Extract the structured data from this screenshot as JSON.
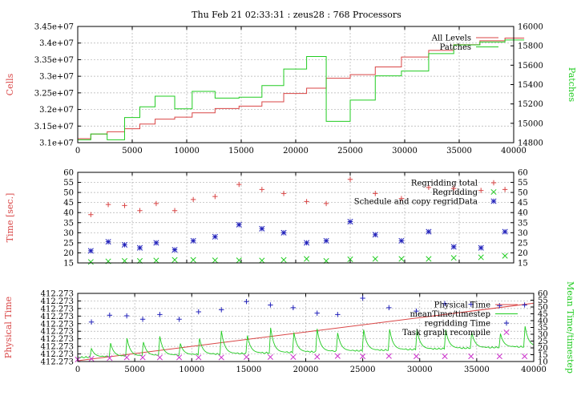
{
  "figure_title": "Thu Feb 21 02:33:31 : zeus28 : 768 Processors",
  "colors": {
    "red": "#d94646",
    "green": "#22cc22",
    "blue": "#2222bb",
    "magenta": "#cc33cc",
    "grid": "#b0b0b0"
  },
  "chart_data": [
    {
      "type": "line",
      "ylabel": "Cells",
      "y2label": "Patches",
      "xlim": [
        0,
        40000
      ],
      "ylim": [
        31000000,
        34500000
      ],
      "y2lim": [
        14800,
        16000
      ],
      "xticks": [
        0,
        5000,
        10000,
        15000,
        20000,
        25000,
        30000,
        35000,
        40000
      ],
      "xtick_labels": [
        "0",
        "5000",
        "10000",
        "15000",
        "20000",
        "25000",
        "30000",
        "35000",
        "40000"
      ],
      "yticks": [
        31000000,
        31500000,
        32000000,
        32500000,
        33000000,
        33500000,
        34000000,
        34500000
      ],
      "ytick_labels": [
        "3.1e+07",
        "3.15e+07",
        "3.2e+07",
        "3.25e+07",
        "3.3e+07",
        "3.35e+07",
        "3.4e+07",
        "3.45e+07"
      ],
      "y2ticks": [
        14800,
        15000,
        15200,
        15400,
        15600,
        15800,
        16000
      ],
      "y2tick_labels": [
        "14800",
        "15000",
        "15200",
        "15400",
        "15600",
        "15800",
        "16000"
      ],
      "grid": true,
      "legend": "top-right",
      "series": [
        {
          "name": "All Levels",
          "color": "#d94646",
          "axis": "left",
          "step": true,
          "x": [
            0,
            1200,
            2700,
            4300,
            5700,
            7100,
            8900,
            10500,
            12600,
            14800,
            16900,
            18900,
            21000,
            22800,
            25000,
            27300,
            29700,
            32200,
            34500,
            36900,
            39200
          ],
          "y": [
            31120000,
            31260000,
            31330000,
            31420000,
            31560000,
            31710000,
            31770000,
            31900000,
            32030000,
            32100000,
            32230000,
            32480000,
            32640000,
            32940000,
            33050000,
            33280000,
            33580000,
            33780000,
            33950000,
            34070000,
            34150000
          ]
        },
        {
          "name": "Patches",
          "color": "#22cc22",
          "axis": "right",
          "step": true,
          "x": [
            0,
            1200,
            2700,
            4300,
            5700,
            7100,
            8900,
            10500,
            12600,
            14800,
            16900,
            18900,
            21000,
            22800,
            25000,
            27300,
            29700,
            32200,
            34500,
            36900,
            39200
          ],
          "y": [
            14830,
            14890,
            14830,
            15060,
            15170,
            15280,
            15150,
            15330,
            15260,
            15270,
            15390,
            15560,
            15690,
            15020,
            15240,
            15490,
            15540,
            15720,
            15810,
            15840,
            15860
          ]
        }
      ]
    },
    {
      "type": "scatter",
      "ylabel": "Time [sec.]",
      "xlim": [
        0,
        40000
      ],
      "ylim": [
        15,
        60
      ],
      "y2lim": [
        15,
        60
      ],
      "xticks": [
        0,
        5000,
        10000,
        15000,
        20000,
        25000,
        30000,
        35000,
        40000
      ],
      "xtick_labels": [],
      "yticks": [
        15,
        20,
        25,
        30,
        35,
        40,
        45,
        50,
        55,
        60
      ],
      "ytick_labels": [
        "15",
        "20",
        "25",
        "30",
        "35",
        "40",
        "45",
        "50",
        "55",
        "60"
      ],
      "y2ticks": [
        15,
        20,
        25,
        30,
        35,
        40,
        45,
        50,
        55,
        60
      ],
      "y2tick_labels": [
        "15",
        "20",
        "25",
        "30",
        "35",
        "40",
        "45",
        "50",
        "55",
        "60"
      ],
      "grid": true,
      "legend": "top-right",
      "series": [
        {
          "name": "Regridding total",
          "marker": "plus",
          "color": "#d94646",
          "x": [
            1200,
            2800,
            4300,
            5700,
            7200,
            8900,
            10600,
            12600,
            14800,
            16900,
            18900,
            21000,
            22800,
            25000,
            27300,
            29700,
            32200,
            34500,
            37000,
            39200
          ],
          "y": [
            39,
            44,
            43.5,
            41,
            44.5,
            41,
            46.5,
            48,
            54,
            51.5,
            49.5,
            45.5,
            44.5,
            56.5,
            49.5,
            47,
            52.5,
            52,
            51,
            51.5
          ]
        },
        {
          "name": "Regridding",
          "marker": "cross",
          "color": "#22cc22",
          "x": [
            1200,
            2800,
            4300,
            5700,
            7200,
            8900,
            10600,
            12600,
            14800,
            16900,
            18900,
            21000,
            22800,
            25000,
            27300,
            29700,
            32200,
            34500,
            37000,
            39200
          ],
          "y": [
            15.5,
            15.8,
            16,
            16,
            16.2,
            16.5,
            16.5,
            16.3,
            16.3,
            16.2,
            16.5,
            17,
            16,
            16.8,
            17,
            17,
            17,
            17.5,
            17.8,
            18.5
          ]
        },
        {
          "name": "Schedule and copy regridData",
          "marker": "star",
          "color": "#2222bb",
          "x": [
            1200,
            2800,
            4300,
            5700,
            7200,
            8900,
            10600,
            12600,
            14800,
            16900,
            18900,
            21000,
            22800,
            25000,
            27300,
            29700,
            32200,
            34500,
            37000,
            39200
          ],
          "y": [
            21,
            25.5,
            24,
            22.5,
            25,
            21.5,
            26,
            28,
            34,
            32,
            30,
            25,
            26,
            35.5,
            29,
            26,
            30.5,
            23,
            22.5,
            30.5
          ]
        }
      ]
    },
    {
      "type": "line",
      "ylabel": "Physical Time",
      "y2label": "Mean Time/timestep",
      "xlim": [
        0,
        40000
      ],
      "ylim": [
        0,
        9
      ],
      "y2lim": [
        10,
        60
      ],
      "xticks": [
        0,
        5000,
        10000,
        15000,
        20000,
        25000,
        30000,
        35000,
        40000
      ],
      "xtick_labels": [
        "0",
        "5000",
        "10000",
        "15000",
        "20000",
        "25000",
        "30000",
        "35000",
        "40000"
      ],
      "yticks": [
        0,
        1,
        2,
        3,
        4,
        5,
        6,
        7,
        8,
        9
      ],
      "ytick_labels": [
        "412.273",
        "412.273",
        "412.273",
        "412.273",
        "412.273",
        "412.273",
        "412.273",
        "412.273",
        "412.273",
        "412.273"
      ],
      "y2ticks": [
        10,
        15,
        20,
        25,
        30,
        35,
        40,
        45,
        50,
        55,
        60
      ],
      "y2tick_labels": [
        "10",
        "15",
        "20",
        "25",
        "30",
        "35",
        "40",
        "45",
        "50",
        "55",
        "60"
      ],
      "grid": true,
      "legend": "top-right",
      "series": [
        {
          "name": "Physical Time",
          "color": "#d94646",
          "axis": "left",
          "style": "line",
          "x": [
            0,
            40000
          ],
          "y": [
            0.1,
            7.7
          ]
        },
        {
          "name": "meanTime/timestep",
          "color": "#22cc22",
          "axis": "right",
          "style": "spikes",
          "baseline": [
            [
              0,
              13
            ],
            [
              10000,
              15
            ],
            [
              20000,
              17
            ],
            [
              30000,
              19
            ],
            [
              40000,
              21
            ]
          ],
          "spikes": {
            "x": [
              1200,
              2800,
              4300,
              5700,
              7200,
              8900,
              10600,
              12600,
              14800,
              16900,
              18900,
              21000,
              22800,
              25000,
              27300,
              29700,
              32200,
              34500,
              37000,
              39200
            ],
            "y": [
              19.5,
              26.5,
              28,
              26.5,
              28.5,
              26.5,
              30.5,
              32.5,
              33,
              36,
              34.5,
              34,
              31,
              38,
              37,
              36.5,
              37.5,
              34,
              33.5,
              38
            ]
          }
        },
        {
          "name": "regridding Time",
          "marker": "plus",
          "color": "#2222bb",
          "axis": "right",
          "x": [
            1200,
            2800,
            4300,
            5700,
            7200,
            8900,
            10600,
            12600,
            14800,
            16900,
            18900,
            21000,
            22800,
            25000,
            27300,
            29700,
            32200,
            34500,
            37000,
            39200
          ],
          "y": [
            39,
            44,
            43.5,
            41,
            44.5,
            41,
            46.5,
            48,
            54,
            51.5,
            49.5,
            45.5,
            44.5,
            56.5,
            49.5,
            47,
            52.5,
            52,
            51,
            51.5
          ]
        },
        {
          "name": "Task graph recompile",
          "marker": "cross",
          "color": "#cc33cc",
          "axis": "right",
          "x": [
            0,
            1200,
            2800,
            4300,
            5700,
            7200,
            8900,
            10600,
            12600,
            14800,
            16900,
            18900,
            21000,
            22800,
            25000,
            27300,
            29700,
            32200,
            34500,
            37000,
            39200
          ],
          "y": [
            11.5,
            12,
            12.5,
            13,
            13,
            13,
            13,
            13,
            13,
            13.3,
            13.3,
            13.3,
            13.5,
            14,
            13.8,
            14,
            13.8,
            13.8,
            13.8,
            13.8,
            13.8
          ]
        }
      ]
    }
  ]
}
